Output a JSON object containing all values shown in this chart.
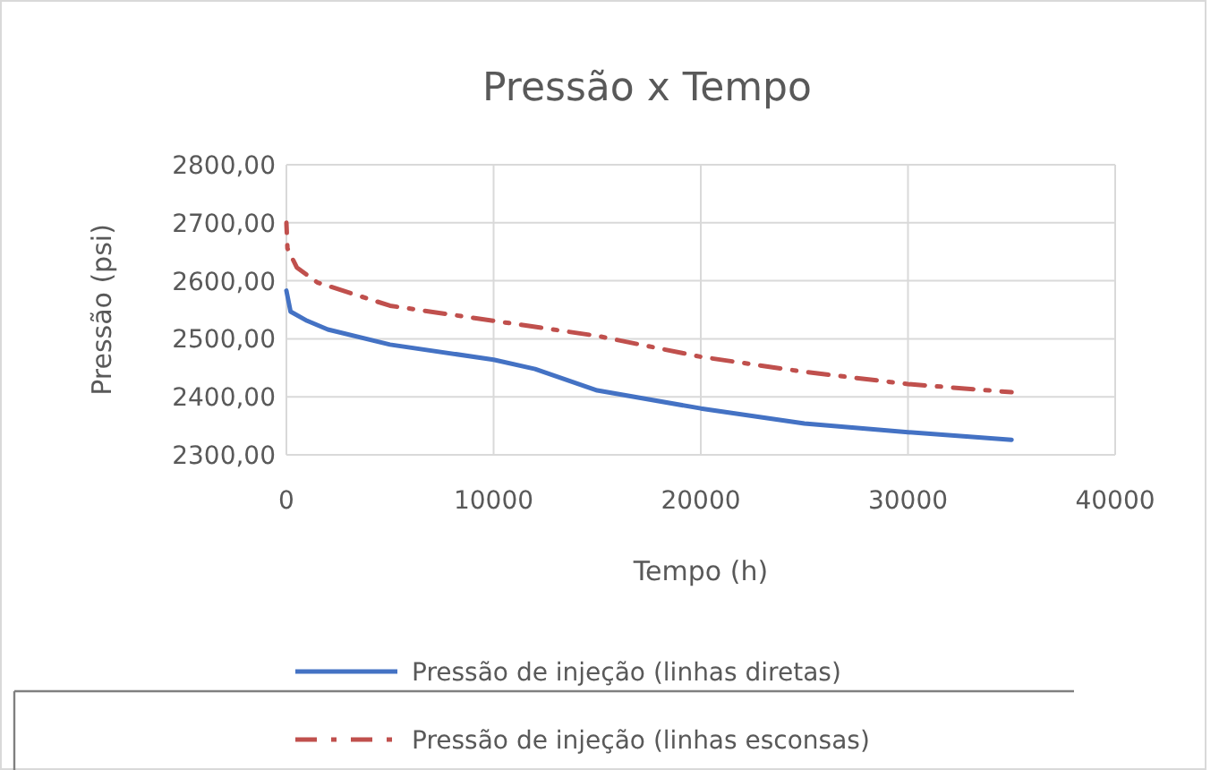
{
  "chart_data": {
    "type": "line",
    "title": "Pressão x Tempo",
    "xlabel": "Tempo (h)",
    "ylabel": "Pressão (psi)",
    "xlim": [
      0,
      40000
    ],
    "xticks": [
      0,
      10000,
      20000,
      30000,
      40000
    ],
    "ylim": [
      2300,
      2800
    ],
    "yticks": [
      {
        "value": 2300,
        "label": "2300,00"
      },
      {
        "value": 2400,
        "label": "2400,00"
      },
      {
        "value": 2500,
        "label": "2500,00"
      },
      {
        "value": 2600,
        "label": "2600,00"
      },
      {
        "value": 2700,
        "label": "2700,00"
      },
      {
        "value": 2800,
        "label": "2800,00"
      }
    ],
    "grid": true,
    "legend": "bottom",
    "series": [
      {
        "name": "Pressão de injeção (linhas diretas)",
        "color": "#4472c4",
        "line_style": "solid",
        "x": [
          0,
          200,
          1000,
          2000,
          5000,
          10000,
          12000,
          15000,
          20000,
          25000,
          30000,
          35000
        ],
        "values": [
          2583,
          2547,
          2531,
          2516,
          2490,
          2464,
          2448,
          2411,
          2380,
          2354,
          2339,
          2326
        ]
      },
      {
        "name": "Pressão de injeção (linhas esconsas)",
        "color": "#c0504d",
        "line_style": "dashdot",
        "x": [
          0,
          50,
          500,
          1500,
          5000,
          10000,
          15000,
          20000,
          25000,
          30000,
          35000
        ],
        "values": [
          2700,
          2656,
          2623,
          2597,
          2557,
          2531,
          2505,
          2469,
          2443,
          2422,
          2408
        ]
      }
    ]
  }
}
